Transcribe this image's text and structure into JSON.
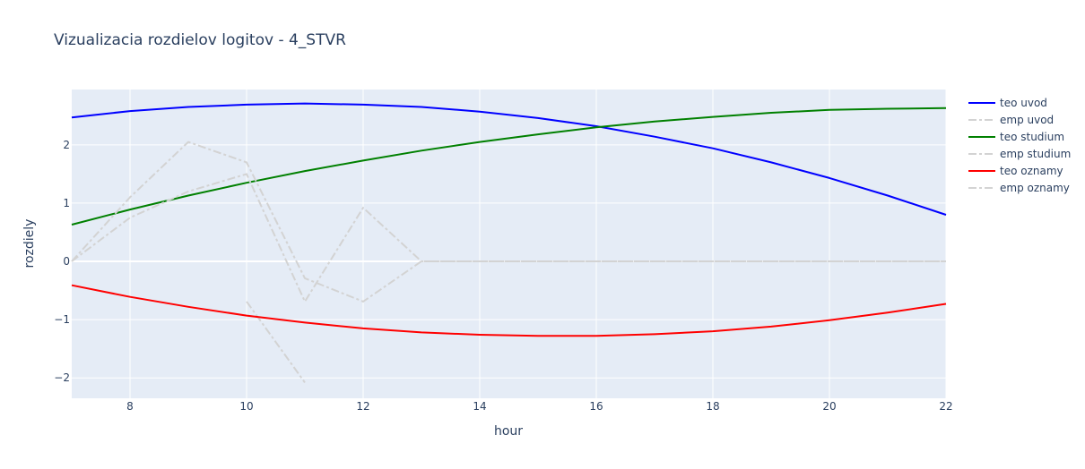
{
  "chart_data": {
    "type": "line",
    "title": "Vizualizacia rozdielov logitov - 4_STVR",
    "xlabel": "hour",
    "ylabel": "rozdiely",
    "xlim": [
      7,
      22
    ],
    "ylim": [
      -2.35,
      2.95
    ],
    "xticks": [
      8,
      10,
      12,
      14,
      16,
      18,
      20,
      22
    ],
    "yticks": [
      -2,
      -1,
      0,
      1,
      2
    ],
    "ytick_labels": [
      "−2",
      "−1",
      "0",
      "1",
      "2"
    ],
    "grid": true,
    "legend_position": "top-right",
    "colors": {
      "plot_bg": "#e5ecf6",
      "grid": "#ffffff",
      "text": "#2a3f5f"
    },
    "series": [
      {
        "name": "teo uvod",
        "color": "#0000ff",
        "dash": "solid",
        "x": [
          7,
          8,
          9,
          10,
          11,
          12,
          13,
          14,
          15,
          16,
          17,
          18,
          19,
          20,
          21,
          22
        ],
        "y": [
          2.47,
          2.58,
          2.65,
          2.69,
          2.71,
          2.69,
          2.65,
          2.57,
          2.46,
          2.32,
          2.14,
          1.94,
          1.7,
          1.43,
          1.13,
          0.8
        ]
      },
      {
        "name": "emp uvod",
        "color": "#d3d3d3",
        "dash": "dashdot",
        "x": [
          10,
          11
        ],
        "y": [
          -0.69,
          -2.08
        ]
      },
      {
        "name": "teo studium",
        "color": "#008000",
        "dash": "solid",
        "x": [
          7,
          8,
          9,
          10,
          11,
          12,
          13,
          14,
          15,
          16,
          17,
          18,
          19,
          20,
          21,
          22
        ],
        "y": [
          0.63,
          0.89,
          1.13,
          1.35,
          1.55,
          1.73,
          1.9,
          2.05,
          2.18,
          2.3,
          2.4,
          2.48,
          2.55,
          2.6,
          2.62,
          2.63
        ]
      },
      {
        "name": "emp studium",
        "color": "#d3d3d3",
        "dash": "dashdot",
        "x": [
          7,
          8,
          9,
          10,
          11,
          12,
          13,
          14,
          15,
          16,
          17,
          18,
          19,
          20,
          21,
          22
        ],
        "y": [
          0.0,
          1.1,
          2.05,
          1.7,
          -0.29,
          -0.69,
          0.0,
          0.0,
          0.0,
          0.0,
          0.0,
          0.0,
          0.0,
          0.0,
          0.0,
          0.0
        ]
      },
      {
        "name": "teo oznamy",
        "color": "#ff0000",
        "dash": "solid",
        "x": [
          7,
          8,
          9,
          10,
          11,
          12,
          13,
          14,
          15,
          16,
          17,
          18,
          19,
          20,
          21,
          22
        ],
        "y": [
          -0.41,
          -0.61,
          -0.78,
          -0.93,
          -1.05,
          -1.15,
          -1.22,
          -1.26,
          -1.28,
          -1.28,
          -1.25,
          -1.2,
          -1.12,
          -1.01,
          -0.88,
          -0.73
        ]
      },
      {
        "name": "emp oznamy",
        "color": "#d3d3d3",
        "dash": "dashdot",
        "x": [
          7,
          8,
          9,
          10,
          11,
          12,
          13,
          14,
          15,
          16,
          17,
          18,
          19,
          20,
          21,
          22
        ],
        "y": [
          0.0,
          0.75,
          1.2,
          1.5,
          -0.69,
          0.92,
          0.0,
          0.0,
          0.0,
          0.0,
          0.0,
          0.0,
          0.0,
          0.0,
          0.0,
          0.0
        ]
      }
    ]
  }
}
